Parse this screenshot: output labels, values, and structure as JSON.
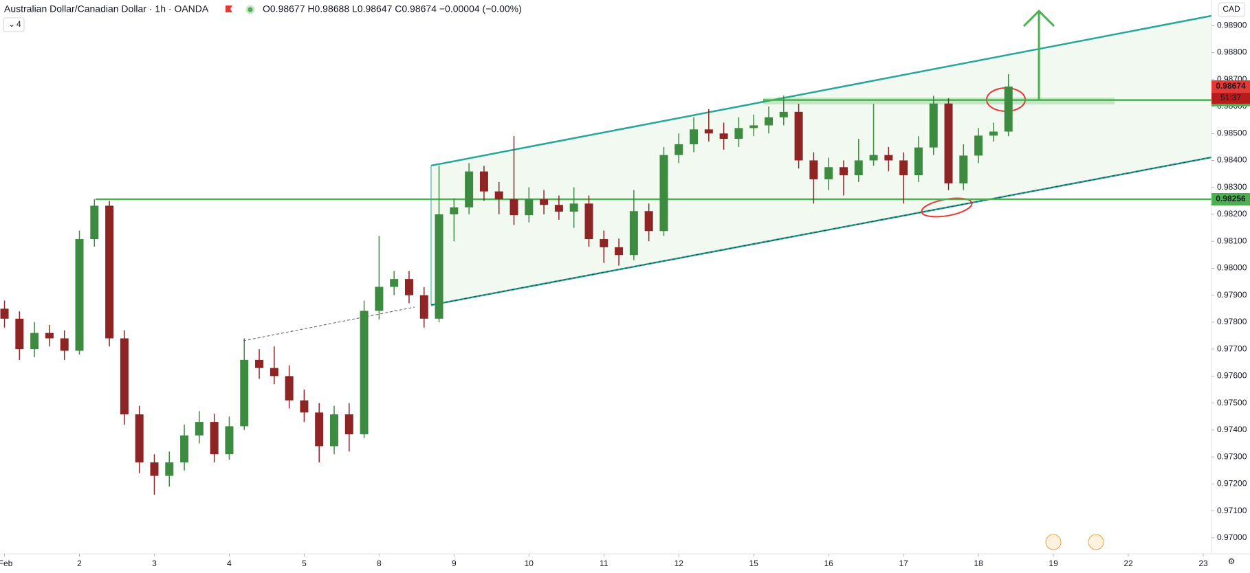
{
  "header": {
    "symbol": "Australian Dollar/Canadian Dollar · 1h · OANDA",
    "ohlc": "O0.98677 H0.98688 L0.98647 C0.98674 −0.00004 (−0.00%)",
    "indicators": "4"
  },
  "chart_data": {
    "type": "candlestick",
    "currency": "CAD",
    "up_color": "#3d8b40",
    "down_color": "#8e2424",
    "x": [
      0,
      0.2,
      0.4,
      0.6,
      0.8,
      1,
      1.2,
      1.4,
      1.6,
      1.8,
      2,
      2.2,
      2.4,
      2.6,
      2.8,
      3,
      3.2,
      3.4,
      3.6,
      3.8,
      4,
      4.2,
      4.4,
      4.6,
      4.8,
      5,
      5.2,
      5.4,
      5.6,
      5.8,
      6,
      6.2,
      6.4,
      6.6,
      6.8,
      7,
      7.2,
      7.4,
      7.6,
      7.8,
      8,
      8.2,
      8.4,
      8.6,
      8.8,
      9,
      9.2,
      9.4,
      9.6,
      9.8,
      10,
      10.2,
      10.4,
      10.6,
      10.8,
      11,
      11.2,
      11.4,
      11.6,
      11.8,
      12,
      12.2,
      12.4,
      12.6,
      12.8,
      13,
      13.2,
      13.4
    ],
    "open": [
      0.9785,
      0.97813,
      0.977,
      0.9776,
      0.9774,
      0.97694,
      0.98108,
      0.98232,
      0.9774,
      0.97458,
      0.9728,
      0.9723,
      0.9728,
      0.9738,
      0.9743,
      0.9731,
      0.97414,
      0.9766,
      0.9763,
      0.976,
      0.9751,
      0.97465,
      0.9734,
      0.97458,
      0.97384,
      0.97842,
      0.97931,
      0.9796,
      0.979,
      0.97813,
      0.982,
      0.98226,
      0.98359,
      0.98285,
      0.98256,
      0.98197,
      0.98256,
      0.98235,
      0.9821,
      0.9824,
      0.98108,
      0.98078,
      0.98049,
      0.98212,
      0.98138,
      0.9842,
      0.9846,
      0.98515,
      0.985,
      0.9848,
      0.9852,
      0.9853,
      0.9856,
      0.9858,
      0.984,
      0.9833,
      0.98375,
      0.98345,
      0.984,
      0.9842,
      0.984,
      0.98345,
      0.98448,
      0.98611,
      0.98315,
      0.98418,
      0.98492,
      0.98507
    ],
    "high": [
      0.9788,
      0.9784,
      0.978,
      0.9779,
      0.9777,
      0.9814,
      0.98256,
      0.9825,
      0.9777,
      0.9749,
      0.9731,
      0.9732,
      0.9742,
      0.9747,
      0.9746,
      0.9745,
      0.9774,
      0.977,
      0.9771,
      0.9764,
      0.9755,
      0.975,
      0.9749,
      0.975,
      0.9788,
      0.9812,
      0.9799,
      0.9799,
      0.9793,
      0.9838,
      0.9826,
      0.9839,
      0.9838,
      0.9832,
      0.9849,
      0.983,
      0.9829,
      0.9827,
      0.983,
      0.9827,
      0.9814,
      0.9811,
      0.9829,
      0.9824,
      0.9845,
      0.985,
      0.9856,
      0.9859,
      0.9854,
      0.9856,
      0.9857,
      0.986,
      0.9864,
      0.9861,
      0.9843,
      0.9841,
      0.984,
      0.9848,
      0.9861,
      0.9845,
      0.9843,
      0.9849,
      0.9864,
      0.9863,
      0.9846,
      0.9852,
      0.9854,
      0.9872
    ],
    "low": [
      0.9778,
      0.9766,
      0.9767,
      0.9771,
      0.9766,
      0.9768,
      0.9808,
      0.9771,
      0.9742,
      0.9724,
      0.9716,
      0.9719,
      0.9725,
      0.9735,
      0.9728,
      0.9729,
      0.974,
      0.9759,
      0.9757,
      0.9748,
      0.9743,
      0.9728,
      0.9731,
      0.9732,
      0.9737,
      0.9781,
      0.979,
      0.9787,
      0.9778,
      0.978,
      0.981,
      0.982,
      0.9825,
      0.982,
      0.9816,
      0.9817,
      0.982,
      0.9818,
      0.9815,
      0.9808,
      0.9802,
      0.9801,
      0.9803,
      0.981,
      0.9812,
      0.9839,
      0.9843,
      0.9847,
      0.9844,
      0.9845,
      0.9849,
      0.985,
      0.9853,
      0.9837,
      0.9824,
      0.9829,
      0.9827,
      0.9832,
      0.9838,
      0.9836,
      0.9824,
      0.9832,
      0.9842,
      0.9829,
      0.9829,
      0.9839,
      0.9847,
      0.9849
    ],
    "close": [
      0.97813,
      0.977,
      0.9776,
      0.9774,
      0.97694,
      0.98108,
      0.98232,
      0.9774,
      0.97458,
      0.9728,
      0.9723,
      0.9728,
      0.9738,
      0.9743,
      0.9731,
      0.97414,
      0.9766,
      0.9763,
      0.976,
      0.9751,
      0.97465,
      0.9734,
      0.97458,
      0.97384,
      0.97842,
      0.97931,
      0.9796,
      0.979,
      0.97813,
      0.982,
      0.98226,
      0.98359,
      0.98285,
      0.98256,
      0.98197,
      0.98256,
      0.98235,
      0.9821,
      0.9824,
      0.98108,
      0.98078,
      0.98049,
      0.98212,
      0.98138,
      0.9842,
      0.9846,
      0.98515,
      0.985,
      0.9848,
      0.9852,
      0.9853,
      0.9856,
      0.9858,
      0.984,
      0.9833,
      0.98375,
      0.98345,
      0.984,
      0.9842,
      0.984,
      0.98345,
      0.98448,
      0.98611,
      0.98315,
      0.98418,
      0.98492,
      0.98507,
      0.98674
    ],
    "xlim": [
      -0.06,
      16.11
    ],
    "xticks": [
      {
        "value": 0,
        "label": "Feb"
      },
      {
        "value": 1,
        "label": "2"
      },
      {
        "value": 2,
        "label": "3"
      },
      {
        "value": 3,
        "label": "4"
      },
      {
        "value": 4,
        "label": "5"
      },
      {
        "value": 5,
        "label": "8"
      },
      {
        "value": 6,
        "label": "9"
      },
      {
        "value": 7,
        "label": "10"
      },
      {
        "value": 8,
        "label": "11"
      },
      {
        "value": 9,
        "label": "12"
      },
      {
        "value": 10,
        "label": "15"
      },
      {
        "value": 11,
        "label": "16"
      },
      {
        "value": 12,
        "label": "17"
      },
      {
        "value": 13,
        "label": "18"
      },
      {
        "value": 14,
        "label": "19"
      },
      {
        "value": 15,
        "label": "22"
      },
      {
        "value": 16,
        "label": "23"
      }
    ],
    "ylim": [
      0.96941,
      0.98995
    ],
    "yticks": [
      {
        "value": 0.97,
        "label": "0.97000"
      },
      {
        "value": 0.971,
        "label": "0.97100"
      },
      {
        "value": 0.972,
        "label": "0.97200"
      },
      {
        "value": 0.973,
        "label": "0.97300"
      },
      {
        "value": 0.974,
        "label": "0.97400"
      },
      {
        "value": 0.975,
        "label": "0.97500"
      },
      {
        "value": 0.976,
        "label": "0.97600"
      },
      {
        "value": 0.977,
        "label": "0.97700"
      },
      {
        "value": 0.978,
        "label": "0.97800"
      },
      {
        "value": 0.979,
        "label": "0.97900"
      },
      {
        "value": 0.98,
        "label": "0.98000"
      },
      {
        "value": 0.981,
        "label": "0.98100"
      },
      {
        "value": 0.982,
        "label": "0.98200"
      },
      {
        "value": 0.983,
        "label": "0.98300"
      },
      {
        "value": 0.984,
        "label": "0.98400"
      },
      {
        "value": 0.985,
        "label": "0.98500"
      },
      {
        "value": 0.986,
        "label": "0.98600"
      },
      {
        "value": 0.987,
        "label": "0.98700"
      },
      {
        "value": 0.988,
        "label": "0.98800"
      },
      {
        "value": 0.989,
        "label": "0.98900"
      }
    ],
    "grid": false,
    "levels": [
      {
        "value": 0.98624,
        "color": "#4caf50"
      },
      {
        "value": 0.98256,
        "color": "#4caf50"
      }
    ],
    "last_price": {
      "value": 0.98674,
      "timer": "51:37",
      "color": "#e53935",
      "timer_color": "#b71c1c"
    }
  }
}
